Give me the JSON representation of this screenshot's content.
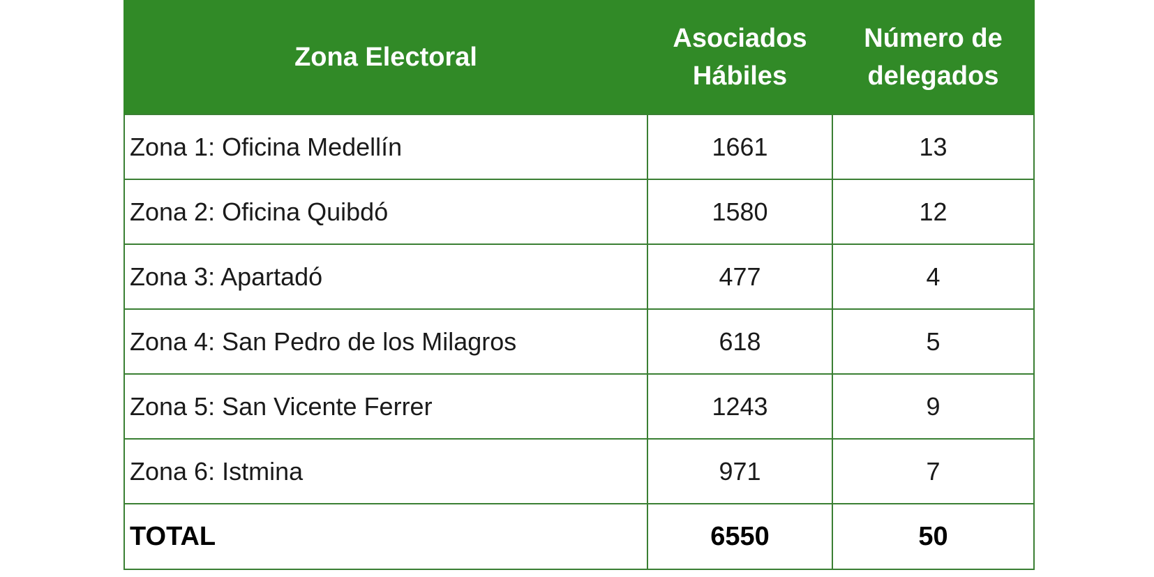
{
  "table": {
    "headers": {
      "zone": "Zona Electoral",
      "asociados_line1": "Asociados",
      "asociados_line2": "Hábiles",
      "delegados_line1": "Número de",
      "delegados_line2": "delegados"
    },
    "rows": [
      {
        "zone": "Zona 1: Oficina Medellín",
        "asociados": "1661",
        "delegados": "13"
      },
      {
        "zone": "Zona 2: Oficina Quibdó",
        "asociados": "1580",
        "delegados": "12"
      },
      {
        "zone": "Zona 3: Apartadó",
        "asociados": "477",
        "delegados": "4"
      },
      {
        "zone": "Zona 4: San Pedro de los Milagros",
        "asociados": "618",
        "delegados": "5"
      },
      {
        "zone": "Zona 5: San Vicente Ferrer",
        "asociados": "1243",
        "delegados": "9"
      },
      {
        "zone": "Zona 6: Istmina",
        "asociados": "971",
        "delegados": "7"
      }
    ],
    "total": {
      "label": "TOTAL",
      "asociados": "6550",
      "delegados": "50"
    }
  },
  "colors": {
    "header_bg": "#318a27",
    "border": "#3a7f33",
    "header_text": "#ffffff"
  }
}
